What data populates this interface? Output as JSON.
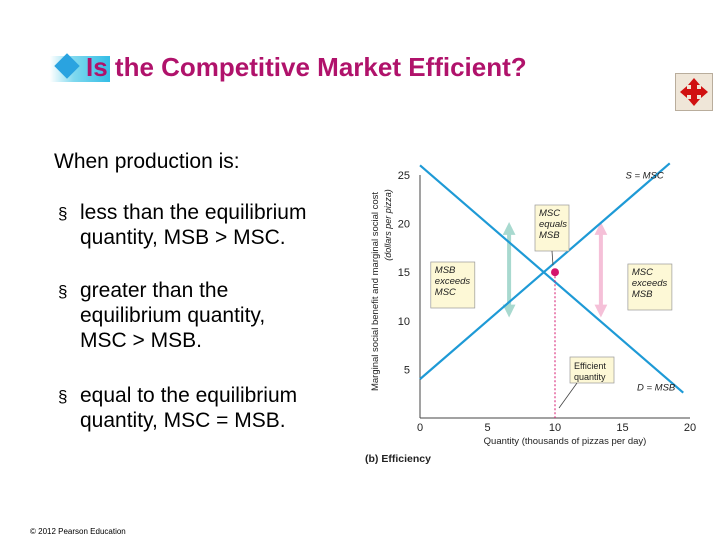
{
  "slide": {
    "title": "Is the Competitive Market Efficient?",
    "intro": "When production is:",
    "bullets": [
      {
        "line1": "less than the equilibrium",
        "line2": "quantity, MSB > MSC."
      },
      {
        "line1": "greater than the",
        "line2": "equilibrium quantity,",
        "line3": "MSC > MSB."
      },
      {
        "line1": "equal to the equilibrium",
        "line2": "quantity, MSC = MSB."
      }
    ],
    "copyright": "© 2012 Pearson Education",
    "bullet_symbol": "§"
  },
  "icons": {
    "move": "move-arrows-icon",
    "title": "diamond-bullet-icon"
  },
  "colors": {
    "title": "#b0126b",
    "curves": "#1e9ad6",
    "equilibrium": "#d4146e",
    "msb_exceeds_arrow": "#a8d9cf",
    "msc_exceeds_arrow": "#f5c0d8"
  },
  "chart_data": {
    "type": "line",
    "title": "",
    "caption": "(b) Efficiency",
    "xlabel": "Quantity (thousands of pizzas per day)",
    "ylabel": "Marginal social benefit and marginal social cost",
    "ylabel2": "(dollars per pizza)",
    "xlim": [
      0,
      20
    ],
    "ylim": [
      0,
      25
    ],
    "xticks": [
      "0",
      "5",
      "10",
      "15",
      "20"
    ],
    "yticks": [
      "5",
      "10",
      "15",
      "20",
      "25"
    ],
    "x_tick_values": [
      0,
      5,
      10,
      15,
      20
    ],
    "y_tick_values": [
      5,
      10,
      15,
      20,
      25
    ],
    "series": [
      {
        "name": "S = MSC",
        "x": [
          0,
          18.5
        ],
        "y": [
          4,
          26.2
        ]
      },
      {
        "name": "D = MSB",
        "x": [
          0,
          19.5
        ],
        "y": [
          26,
          2.6
        ]
      }
    ],
    "equilibrium": {
      "x": 10,
      "y": 15
    },
    "annotations": {
      "msc_equals_msb": [
        "MSC",
        "equals",
        "MSB"
      ],
      "msb_exceeds_msc": [
        "MSB",
        "exceeds",
        "MSC"
      ],
      "msc_exceeds_msb": [
        "MSC",
        "exceeds",
        "MSB"
      ],
      "efficient_quantity": [
        "Efficient",
        "quantity"
      ]
    },
    "arrows": [
      {
        "x": 6.6,
        "y_low": 11.0,
        "y_high": 19.5
      },
      {
        "x": 13.4,
        "y_low": 11.0,
        "y_high": 19.5
      }
    ]
  }
}
